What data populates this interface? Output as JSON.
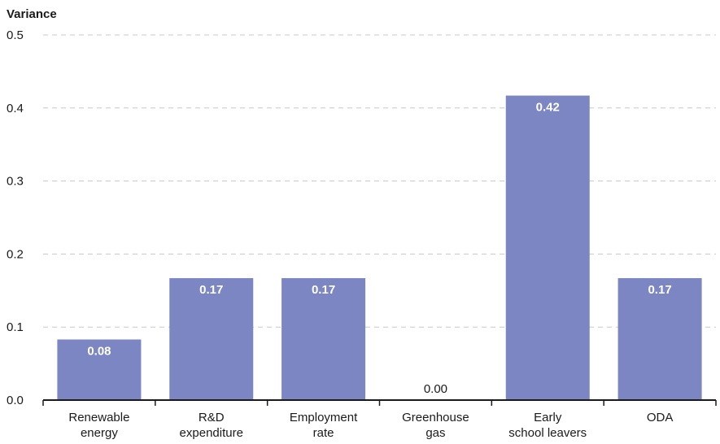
{
  "chart_data": {
    "type": "bar",
    "ylabel": "Variance",
    "xlabel": "",
    "ylim": [
      0,
      0.5
    ],
    "yticks": [
      "0.0",
      "0.1",
      "0.2",
      "0.3",
      "0.4",
      "0.5"
    ],
    "categories": [
      [
        "Renewable",
        "energy"
      ],
      [
        "R&D",
        "expenditure"
      ],
      [
        "Employment",
        "rate"
      ],
      [
        "Greenhouse",
        "gas"
      ],
      [
        "Early",
        "school leavers"
      ],
      [
        "ODA"
      ]
    ],
    "values": [
      0.083,
      0.167,
      0.167,
      0.0,
      0.417,
      0.167
    ],
    "data_labels": [
      "0.08",
      "0.17",
      "0.17",
      "0.00",
      "0.42",
      "0.17"
    ],
    "bar_color": "#7b86c2",
    "grid": "horizontal-dashed",
    "grid_color": "#c8c8c8"
  }
}
